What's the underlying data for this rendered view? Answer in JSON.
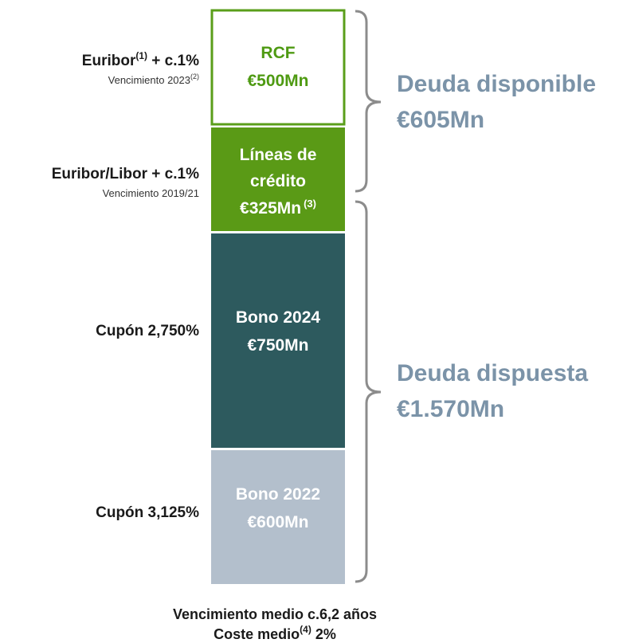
{
  "blocks": [
    {
      "lines": [
        "RCF",
        "€500Mn"
      ]
    },
    {
      "lines": [
        "Líneas de",
        "crédito",
        "€325Mn"
      ],
      "sup": "(3)"
    },
    {
      "lines": [
        "Bono 2024",
        "€750Mn"
      ]
    },
    {
      "lines": [
        "Bono 2022",
        "€600Mn"
      ]
    }
  ],
  "left_labels": [
    {
      "main": "Euribor",
      "main_sup": "(1)",
      "main_rest": " + c.1%",
      "sub": "Vencimiento 2023",
      "sub_sup": "(2)"
    },
    {
      "main": "Euribor/Libor + c.1%",
      "sub": "Vencimiento 2019/21"
    },
    {
      "main": "Cupón 2,750%"
    },
    {
      "main": "Cupón 3,125%"
    }
  ],
  "groups": [
    {
      "title": "Deuda disponible",
      "amount": "€605Mn"
    },
    {
      "title": "Deuda dispuesta",
      "amount": "€1.570Mn"
    }
  ],
  "footer": {
    "line1": "Vencimiento medio c.6,2 años",
    "line2": {
      "text": "Coste medio",
      "sup": "(4)",
      "rest": " 2%"
    }
  }
}
